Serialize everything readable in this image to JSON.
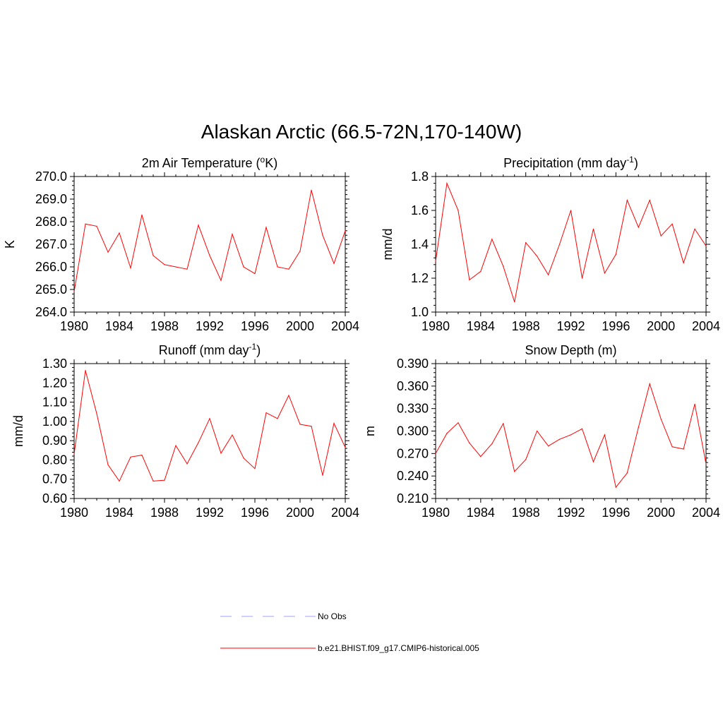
{
  "title": "Alaskan Arctic (66.5-72N,170-140W)",
  "chart_data": [
    {
      "type": "line",
      "title": "2m Air Temperature (",
      "title_sup": "o",
      "title_after": "K)",
      "ylabel": "K",
      "xlim": [
        1980,
        2004
      ],
      "ylim": [
        264.0,
        270.0
      ],
      "xticks": [
        1980,
        1984,
        1988,
        1992,
        1996,
        2000,
        2004
      ],
      "yticks": [
        "264.0",
        "265.0",
        "266.0",
        "267.0",
        "268.0",
        "269.0",
        "270.0"
      ],
      "series": [
        {
          "name": "b.e21.BHIST.f09_g17.CMIP6-historical.005",
          "color": "#ff0000",
          "x": [
            1980,
            1981,
            1982,
            1983,
            1984,
            1985,
            1986,
            1987,
            1988,
            1989,
            1990,
            1991,
            1992,
            1993,
            1994,
            1995,
            1996,
            1997,
            1998,
            1999,
            2000,
            2001,
            2002,
            2003,
            2004
          ],
          "values": [
            264.9,
            267.9,
            267.8,
            266.65,
            267.5,
            265.95,
            268.3,
            266.5,
            266.1,
            266.0,
            265.9,
            267.85,
            266.5,
            265.4,
            267.45,
            266.0,
            265.7,
            267.75,
            266.0,
            265.9,
            266.7,
            269.4,
            267.4,
            266.15,
            267.6
          ]
        }
      ]
    },
    {
      "type": "line",
      "title": "Precipitation (mm day",
      "title_sup": "-1",
      "title_after": ")",
      "ylabel": "mm/d",
      "xlim": [
        1980,
        2004
      ],
      "ylim": [
        1.0,
        1.8
      ],
      "xticks": [
        1980,
        1984,
        1988,
        1992,
        1996,
        2000,
        2004
      ],
      "yticks": [
        "1.0",
        "1.2",
        "1.4",
        "1.6",
        "1.8"
      ],
      "series": [
        {
          "name": "b.e21.BHIST.f09_g17.CMIP6-historical.005",
          "color": "#ff0000",
          "x": [
            1980,
            1981,
            1982,
            1983,
            1984,
            1985,
            1986,
            1987,
            1988,
            1989,
            1990,
            1991,
            1992,
            1993,
            1994,
            1995,
            1996,
            1997,
            1998,
            1999,
            2000,
            2001,
            2002,
            2003,
            2004
          ],
          "values": [
            1.3,
            1.76,
            1.6,
            1.19,
            1.24,
            1.43,
            1.27,
            1.06,
            1.41,
            1.33,
            1.22,
            1.4,
            1.6,
            1.2,
            1.49,
            1.23,
            1.34,
            1.66,
            1.5,
            1.66,
            1.45,
            1.52,
            1.29,
            1.49,
            1.39
          ]
        }
      ]
    },
    {
      "type": "line",
      "title": "Runoff (mm day",
      "title_sup": "-1",
      "title_after": ")",
      "ylabel": "mm/d",
      "xlim": [
        1980,
        2004
      ],
      "ylim": [
        0.6,
        1.3
      ],
      "xticks": [
        1980,
        1984,
        1988,
        1992,
        1996,
        2000,
        2004
      ],
      "yticks": [
        "0.60",
        "0.70",
        "0.80",
        "0.90",
        "1.00",
        "1.10",
        "1.20",
        "1.30"
      ],
      "series": [
        {
          "name": "b.e21.BHIST.f09_g17.CMIP6-historical.005",
          "color": "#ff0000",
          "x": [
            1980,
            1981,
            1982,
            1983,
            1984,
            1985,
            1986,
            1987,
            1988,
            1989,
            1990,
            1991,
            1992,
            1993,
            1994,
            1995,
            1996,
            1997,
            1998,
            1999,
            2000,
            2001,
            2002,
            2003,
            2004
          ],
          "values": [
            0.83,
            1.265,
            1.04,
            0.775,
            0.69,
            0.815,
            0.825,
            0.69,
            0.695,
            0.875,
            0.78,
            0.89,
            1.015,
            0.835,
            0.93,
            0.81,
            0.755,
            1.045,
            1.015,
            1.135,
            0.985,
            0.975,
            0.72,
            0.99,
            0.865
          ]
        }
      ]
    },
    {
      "type": "line",
      "title": "Snow Depth (m)",
      "title_sup": "",
      "title_after": "",
      "ylabel": "m",
      "xlim": [
        1980,
        2004
      ],
      "ylim": [
        0.21,
        0.39
      ],
      "xticks": [
        1980,
        1984,
        1988,
        1992,
        1996,
        2000,
        2004
      ],
      "yticks": [
        "0.210",
        "0.240",
        "0.270",
        "0.300",
        "0.330",
        "0.360",
        "0.390"
      ],
      "series": [
        {
          "name": "b.e21.BHIST.f09_g17.CMIP6-historical.005",
          "color": "#ff0000",
          "x": [
            1980,
            1981,
            1982,
            1983,
            1984,
            1985,
            1986,
            1987,
            1988,
            1989,
            1990,
            1991,
            1992,
            1993,
            1994,
            1995,
            1996,
            1997,
            1998,
            1999,
            2000,
            2001,
            2002,
            2003,
            2004
          ],
          "values": [
            0.27,
            0.297,
            0.311,
            0.284,
            0.266,
            0.283,
            0.31,
            0.246,
            0.262,
            0.3,
            0.28,
            0.289,
            0.295,
            0.303,
            0.259,
            0.295,
            0.225,
            0.244,
            0.305,
            0.363,
            0.316,
            0.279,
            0.276,
            0.336,
            0.256
          ]
        }
      ]
    }
  ],
  "legend": [
    {
      "label": "No Obs",
      "color": "#a0a0ff",
      "style": "dashed"
    },
    {
      "label": "b.e21.BHIST.f09_g17.CMIP6-historical.005",
      "color": "#ff0000",
      "style": "solid"
    }
  ]
}
